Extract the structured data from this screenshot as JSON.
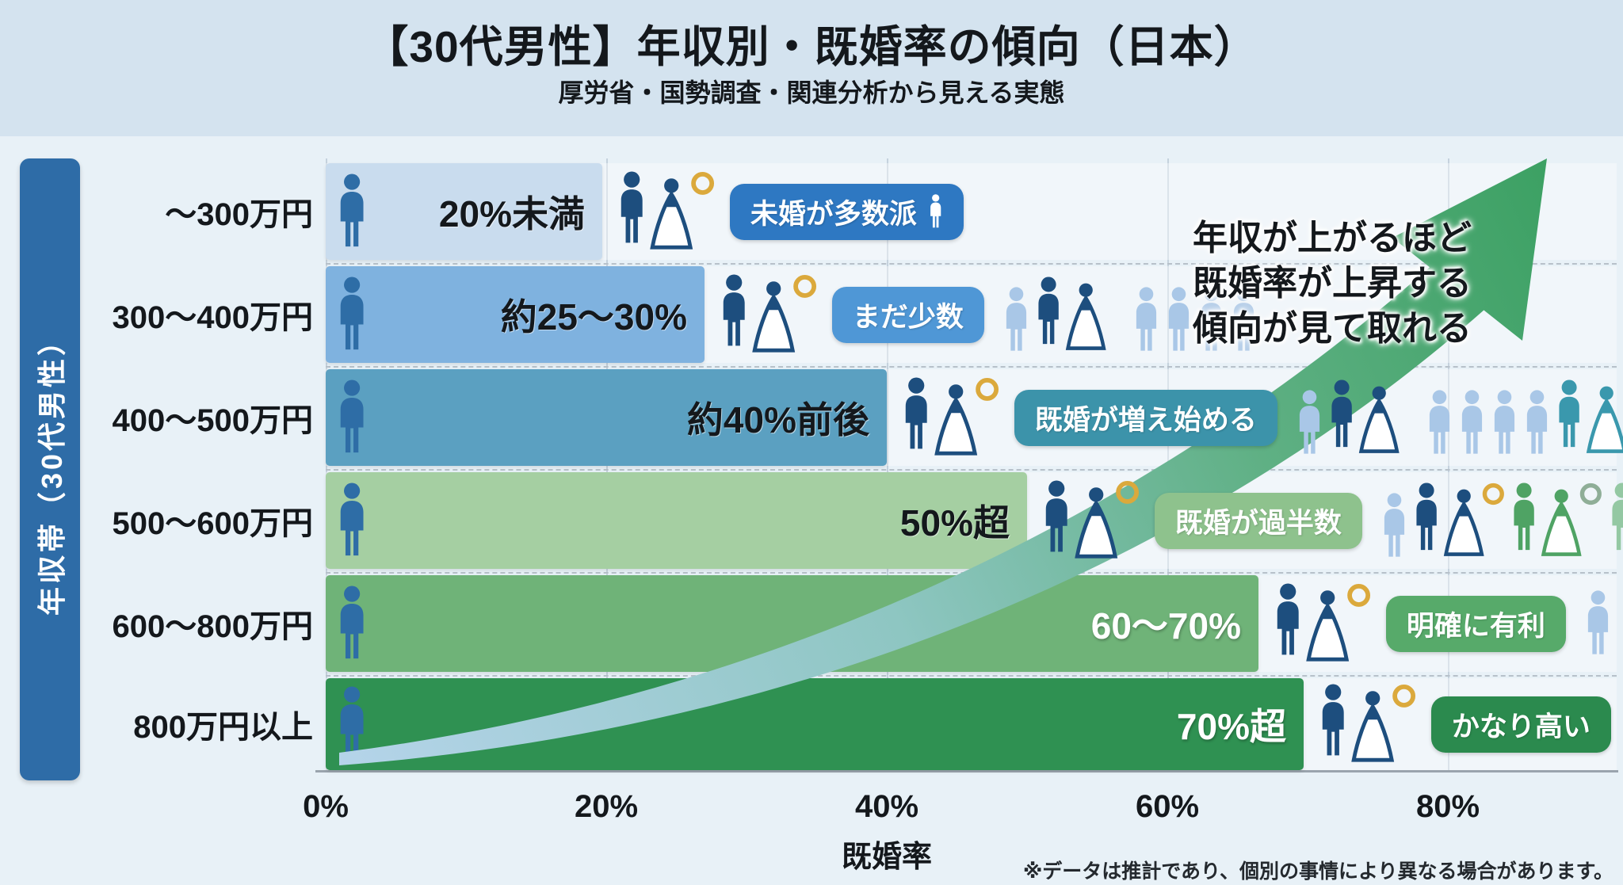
{
  "header": {
    "title": "【30代男性】年収別・既婚率の傾向（日本）",
    "subtitle": "厚労省・国勢調査・関連分析から見える実態"
  },
  "sidebar": {
    "label": "年収帯（30代男性）"
  },
  "annotation": {
    "lines": [
      "年収が上がるほど",
      "既婚率が上昇する",
      "傾向が見て取れる"
    ]
  },
  "axis": {
    "ticks": [
      "0%",
      "20%",
      "40%",
      "60%",
      "80%"
    ],
    "label": "既婚率"
  },
  "footnote": "※データは推計であり、個別の事情により異なる場合があります。",
  "colors": {
    "header_bg": "#d4e3ef",
    "body_bg": "#e8f1f7",
    "sidebar": "#2e6ca7",
    "grid": "#c5d2dd",
    "dash": "#b7c1ca",
    "axis_line": "#9aa4ad",
    "bar_person": "#2e6da6",
    "couple_navy": "#1d4e7e",
    "ring_gold": "#dba93c",
    "person_light": "#a9c7e7",
    "arrow_stops": [
      "#b5d4ea",
      "#8ec6c2",
      "#5fb084",
      "#3da164"
    ]
  },
  "chart_data": {
    "type": "bar",
    "orientation": "horizontal",
    "title": "【30代男性】年収別・既婚率の傾向（日本）",
    "subtitle": "厚労省・国勢調査・関連分析から見える実態",
    "categories": [
      "〜300万円",
      "300〜400万円",
      "400〜500万円",
      "500〜600万円",
      "600〜800万円",
      "800万円以上"
    ],
    "value_labels": [
      "20%未満",
      "約25〜30%",
      "約40%前後",
      "50%超",
      "60〜70%",
      "70%超"
    ],
    "values_percent_estimate": [
      18,
      27.5,
      40,
      52,
      65,
      72
    ],
    "bar_end_percent": [
      19.7,
      27,
      40,
      50,
      66.5,
      69.7
    ],
    "badges": [
      "未婚が多数派",
      "まだ少数",
      "既婚が増え始める",
      "既婚が過半数",
      "明確に有利",
      "かなり高い"
    ],
    "xlabel": "既婚率",
    "ylabel": "年収帯（30代男性）",
    "xticks_percent": [
      0,
      20,
      40,
      60,
      80
    ],
    "xlim": [
      0,
      92
    ],
    "grid": true,
    "annotation": "年収が上がるほど既婚率が上昇する傾向が見て取れる"
  },
  "rows": [
    {
      "category": "〜300万円",
      "value_label": "20%未満",
      "value_style": "dark",
      "bar_percent": 19.7,
      "bar_color": "#c9dcee",
      "badge": {
        "text": "未婚が多数派",
        "color": "#2e78c2",
        "trailing_person": true
      },
      "cluster": []
    },
    {
      "category": "300〜400万円",
      "value_label": "約25〜30%",
      "value_style": "dark",
      "bar_percent": 27,
      "bar_color": "#7fb2df",
      "badge": {
        "text": "まだ少数",
        "color": "#4f97d6"
      },
      "cluster": [
        {
          "t": "person",
          "c": "#a9c7e7"
        },
        {
          "t": "couple",
          "c": "#1d4e7e"
        },
        {
          "t": "person",
          "c": "#a9c7e7"
        },
        {
          "t": "person",
          "c": "#a9c7e7"
        },
        {
          "t": "person",
          "c": "#b7cfe9"
        },
        {
          "t": "person",
          "c": "#b7cfe9"
        }
      ]
    },
    {
      "category": "400〜500万円",
      "value_label": "約40%前後",
      "value_style": "dark",
      "bar_percent": 40,
      "bar_color": "#5ba0c1",
      "badge": {
        "text": "既婚が増え始める",
        "color": "#3c93aa"
      },
      "cluster": [
        {
          "t": "person",
          "c": "#a9c7e7"
        },
        {
          "t": "couple",
          "c": "#1d4e7e"
        },
        {
          "t": "person",
          "c": "#a9c7e7"
        },
        {
          "t": "person",
          "c": "#a9c7e7"
        },
        {
          "t": "person",
          "c": "#a9c7e7"
        },
        {
          "t": "person",
          "c": "#a9c7e7"
        },
        {
          "t": "couple",
          "c": "#3a98ad"
        },
        {
          "t": "person",
          "c": "#a9c7e7"
        }
      ]
    },
    {
      "category": "500〜600万円",
      "value_label": "50%超",
      "value_style": "dark",
      "bar_percent": 50,
      "bar_color": "#a5cfa2",
      "badge": {
        "text": "既婚が過半数",
        "color": "#8ec28d"
      },
      "cluster": [
        {
          "t": "person",
          "c": "#a9c7e7"
        },
        {
          "t": "couple",
          "c": "#1d4e7e",
          "ring": "#dba93c"
        },
        {
          "t": "couple",
          "c": "#4fa364",
          "ring": "#8fae97"
        },
        {
          "t": "couple",
          "c": "#94c8a3",
          "ring": "#a5c3ae"
        }
      ]
    },
    {
      "category": "600〜800万円",
      "value_label": "60〜70%",
      "value_style": "light",
      "bar_percent": 66.5,
      "bar_color": "#6fb378",
      "badge": {
        "text": "明確に有利",
        "color": "#57aa6a"
      },
      "cluster": [
        {
          "t": "person",
          "c": "#a9c7e7"
        }
      ]
    },
    {
      "category": "800万円以上",
      "value_label": "70%超",
      "value_style": "light",
      "bar_percent": 69.7,
      "bar_color": "#2f9152",
      "badge": {
        "text": "かなり高い",
        "color": "#2b8a4e"
      },
      "cluster": []
    }
  ]
}
